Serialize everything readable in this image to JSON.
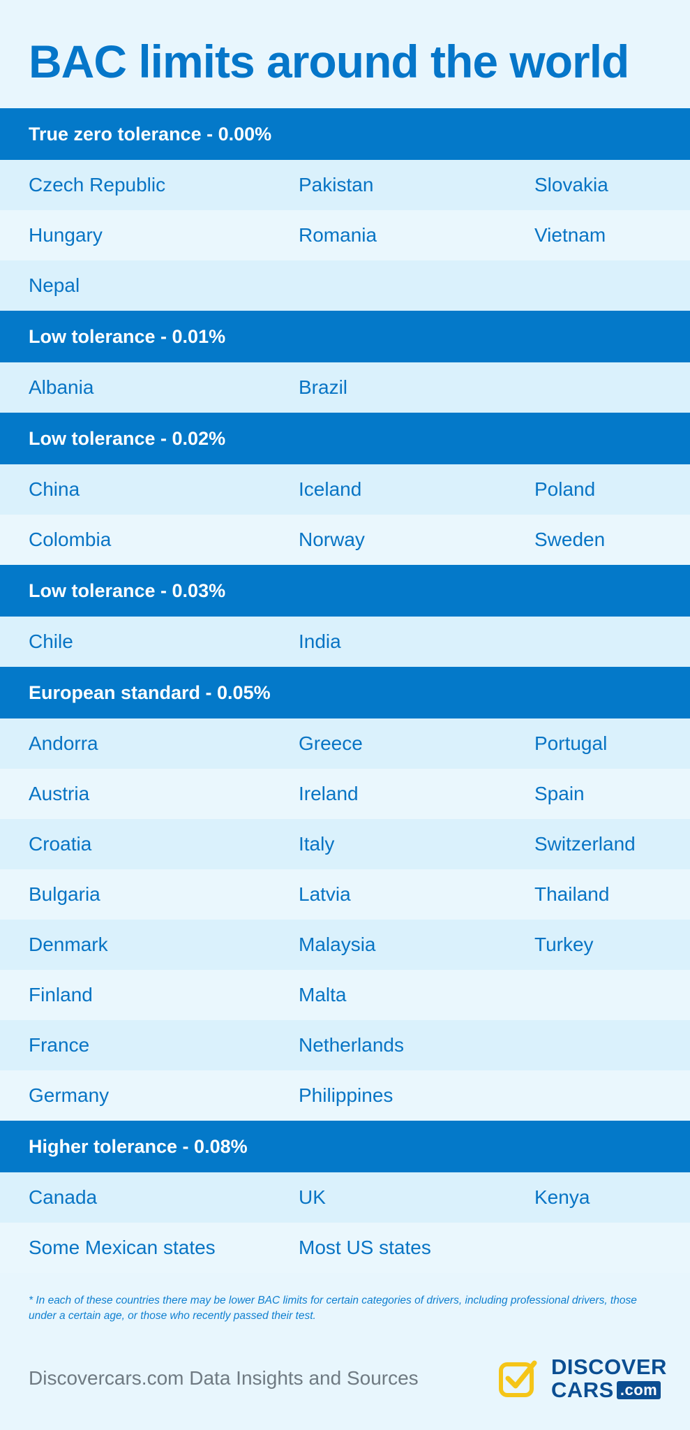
{
  "title": "BAC limits around the world",
  "sections": [
    {
      "header": "True zero tolerance - 0.00%",
      "rows": [
        [
          "Czech Republic",
          "Pakistan",
          "Slovakia"
        ],
        [
          "Hungary",
          "Romania",
          "Vietnam"
        ],
        [
          "Nepal",
          "",
          ""
        ]
      ]
    },
    {
      "header": "Low tolerance - 0.01%",
      "rows": [
        [
          "Albania",
          "Brazil",
          ""
        ]
      ]
    },
    {
      "header": "Low tolerance - 0.02%",
      "rows": [
        [
          "China",
          "Iceland",
          "Poland"
        ],
        [
          "Colombia",
          "Norway",
          "Sweden"
        ]
      ]
    },
    {
      "header": "Low tolerance - 0.03%",
      "rows": [
        [
          "Chile",
          "India",
          ""
        ]
      ]
    },
    {
      "header": "European standard - 0.05%",
      "rows": [
        [
          "Andorra",
          "Greece",
          "Portugal"
        ],
        [
          "Austria",
          "Ireland",
          "Spain"
        ],
        [
          "Croatia",
          "Italy",
          "Switzerland"
        ],
        [
          "Bulgaria",
          "Latvia",
          "Thailand"
        ],
        [
          "Denmark",
          "Malaysia",
          "Turkey"
        ],
        [
          "Finland",
          "Malta",
          ""
        ],
        [
          "France",
          "Netherlands",
          ""
        ],
        [
          "Germany",
          "Philippines",
          ""
        ]
      ]
    },
    {
      "header": "Higher tolerance - 0.08%",
      "rows": [
        [
          "Canada",
          "UK",
          "Kenya"
        ],
        [
          "Some Mexican states",
          "Most US states",
          ""
        ]
      ]
    }
  ],
  "footnote": "* In each of these countries there may be lower BAC limits for certain categories of drivers, including professional drivers, those under a certain age, or those who recently passed their test.",
  "sources": "Discovercars.com Data Insights and Sources",
  "logo": {
    "line1": "DISCOVER",
    "line2": "CARS",
    "suffix": ".com",
    "icon": "checkbox-check-icon"
  },
  "colors": {
    "background": "#e8f6fd",
    "header": "#0479c9",
    "title": "#0576c9",
    "row_text": "#0874c4",
    "logo_navy": "#0b4e92",
    "logo_yellow": "#f5c518"
  }
}
